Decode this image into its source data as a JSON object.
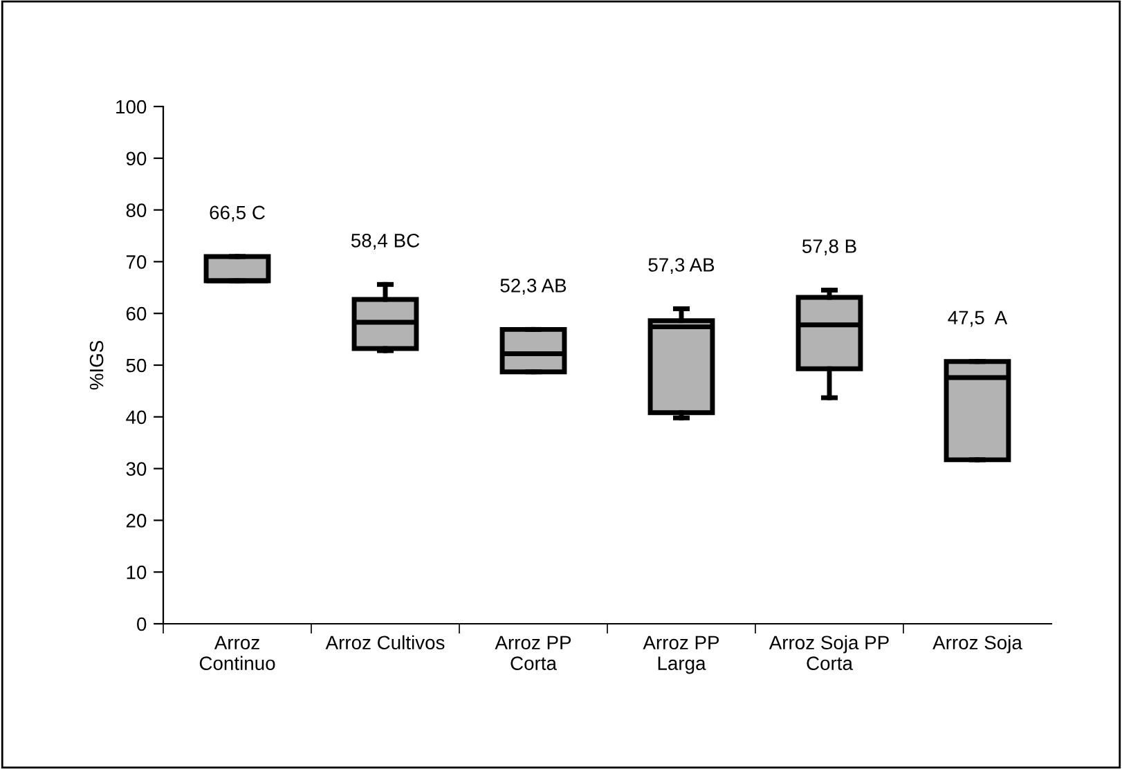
{
  "chart_data": {
    "type": "box",
    "ylabel": "%IGS",
    "categories": [
      "Arroz\nContinuo",
      "Arroz Cultivos",
      "Arroz PP\nCorta",
      "Arroz PP\nLarga",
      "Arroz Soja PP\nCorta",
      "Arroz Soja"
    ],
    "color": "#b3b3b3",
    "boxes": [
      {
        "low": 66.3,
        "q1": 66.3,
        "median": 66.3,
        "q3": 71.0,
        "high": 71.0
      },
      {
        "low": 52.8,
        "q1": 53.2,
        "median": 58.3,
        "q3": 62.7,
        "high": 65.6
      },
      {
        "low": 48.7,
        "q1": 48.7,
        "median": 52.2,
        "q3": 56.9,
        "high": 56.9
      },
      {
        "low": 39.8,
        "q1": 40.8,
        "median": 57.4,
        "q3": 58.6,
        "high": 60.9
      },
      {
        "low": 43.7,
        "q1": 49.3,
        "median": 57.8,
        "q3": 63.1,
        "high": 64.5
      },
      {
        "low": 31.7,
        "q1": 31.7,
        "median": 47.6,
        "q3": 50.7,
        "high": 50.7
      }
    ],
    "annotations": [
      "66,5 C",
      "58,4 BC",
      "52,3 AB",
      "57,3 AB",
      "57,8 B",
      "47,5  A"
    ],
    "ylim": [
      0,
      100
    ],
    "yticks": [
      0,
      10,
      20,
      30,
      40,
      50,
      60,
      70,
      80,
      90,
      100
    ],
    "grid": false
  }
}
